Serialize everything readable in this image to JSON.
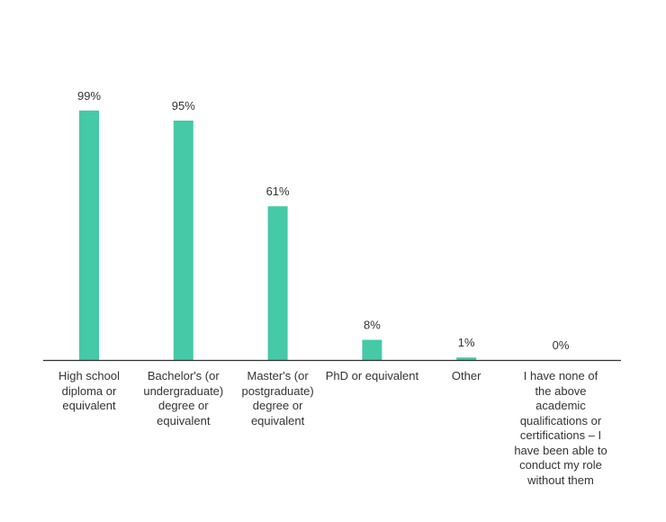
{
  "chart_data": {
    "type": "bar",
    "categories": [
      "High school diploma or equivalent",
      "Bachelor's (or undergraduate) degree or equivalent",
      "Master's (or postgraduate) degree or equivalent",
      "PhD or equivalent",
      "Other",
      "I have none of the above academic qualifications or certifications – I have been able to conduct my role without them"
    ],
    "values": [
      99,
      95,
      61,
      8,
      1,
      0
    ],
    "value_labels": [
      "99%",
      "95%",
      "61%",
      "8%",
      "1%",
      "0%"
    ],
    "unit": "%",
    "ylim": [
      0,
      100
    ],
    "grid": false,
    "legend": "none",
    "bar_color": "#45c9a7",
    "axis_color": "#333333"
  }
}
